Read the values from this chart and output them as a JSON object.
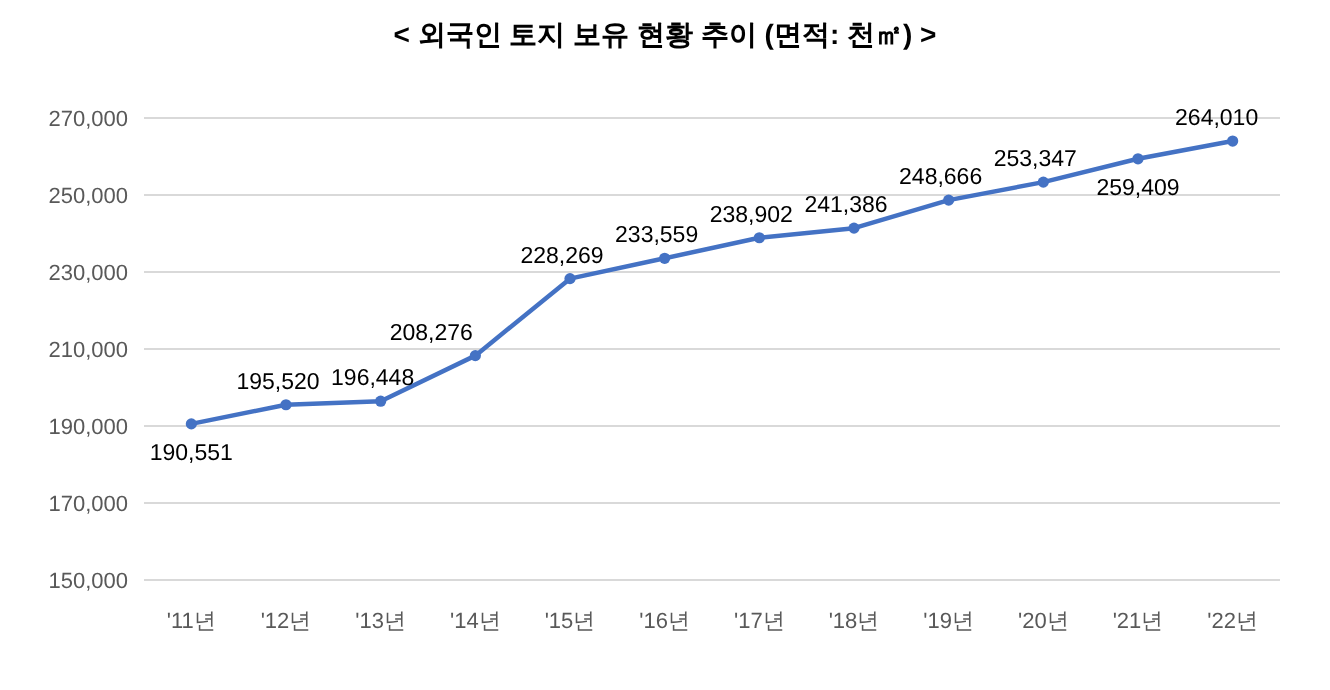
{
  "chart_data": {
    "type": "line",
    "title": "< 외국인 토지 보유 현황 추이 (면적: 천㎡) >",
    "categories": [
      "'11년",
      "'12년",
      "'13년",
      "'14년",
      "'15년",
      "'16년",
      "'17년",
      "'18년",
      "'19년",
      "'20년",
      "'21년",
      "'22년"
    ],
    "series": [
      {
        "color": "#4472c4",
        "values": [
          190551,
          195520,
          196448,
          208276,
          228269,
          233559,
          238902,
          241386,
          248666,
          253347,
          259409,
          264010
        ],
        "value_labels": [
          "190,551",
          "195,520",
          "196,448",
          "208,276",
          "228,269",
          "233,559",
          "238,902",
          "241,386",
          "248,666",
          "253,347",
          "259,409",
          "264,010"
        ]
      }
    ],
    "ylim": [
      150000,
      270000
    ],
    "yticks": [
      {
        "value": 150000,
        "label": "150,000"
      },
      {
        "value": 170000,
        "label": "170,000"
      },
      {
        "value": 190000,
        "label": "190,000"
      },
      {
        "value": 210000,
        "label": "210,000"
      },
      {
        "value": 230000,
        "label": "230,000"
      },
      {
        "value": 250000,
        "label": "250,000"
      },
      {
        "value": 270000,
        "label": "270,000"
      }
    ],
    "grid": "y",
    "marker": "circle",
    "line_style": "solid"
  }
}
